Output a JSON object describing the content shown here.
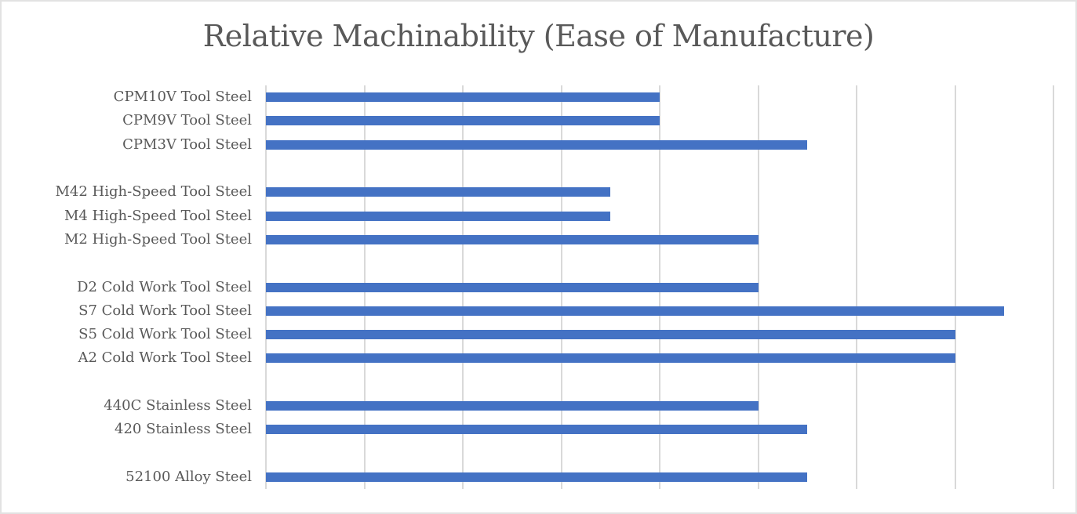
{
  "page": {
    "background_color": "#ffffff",
    "frame_border_color": "#E2E2E2"
  },
  "chart_data": {
    "type": "bar",
    "orientation": "horizontal",
    "title": "Relative Machinability (Ease of Manufacture)",
    "categories": [
      "CPM10V Tool Steel",
      "CPM9V Tool Steel",
      "CPM3V Tool Steel",
      "",
      "M42 High-Speed Tool Steel",
      "M4 High-Speed Tool Steel",
      "M2 High-Speed Tool Steel",
      "",
      "D2 Cold Work Tool Steel",
      "S7 Cold Work Tool Steel",
      "S5 Cold Work Tool Steel",
      "A2 Cold Work Tool Steel",
      "",
      "440C Stainless Steel",
      "420 Stainless Steel",
      "",
      "52100 Alloy Steel"
    ],
    "values": [
      40,
      40,
      55,
      null,
      35,
      35,
      50,
      null,
      50,
      75,
      70,
      70,
      null,
      50,
      55,
      null,
      55
    ],
    "xlabel": "",
    "ylabel": "",
    "xlim": [
      0,
      80
    ],
    "x_gridline_step": 10,
    "grid": "vertical-only",
    "x_tick_labels_visible": false,
    "legend": "none",
    "bar_color": "#4472C4",
    "gridline_color": "#D9D9D9",
    "text_color": "#595959",
    "title_color": "#595959"
  }
}
